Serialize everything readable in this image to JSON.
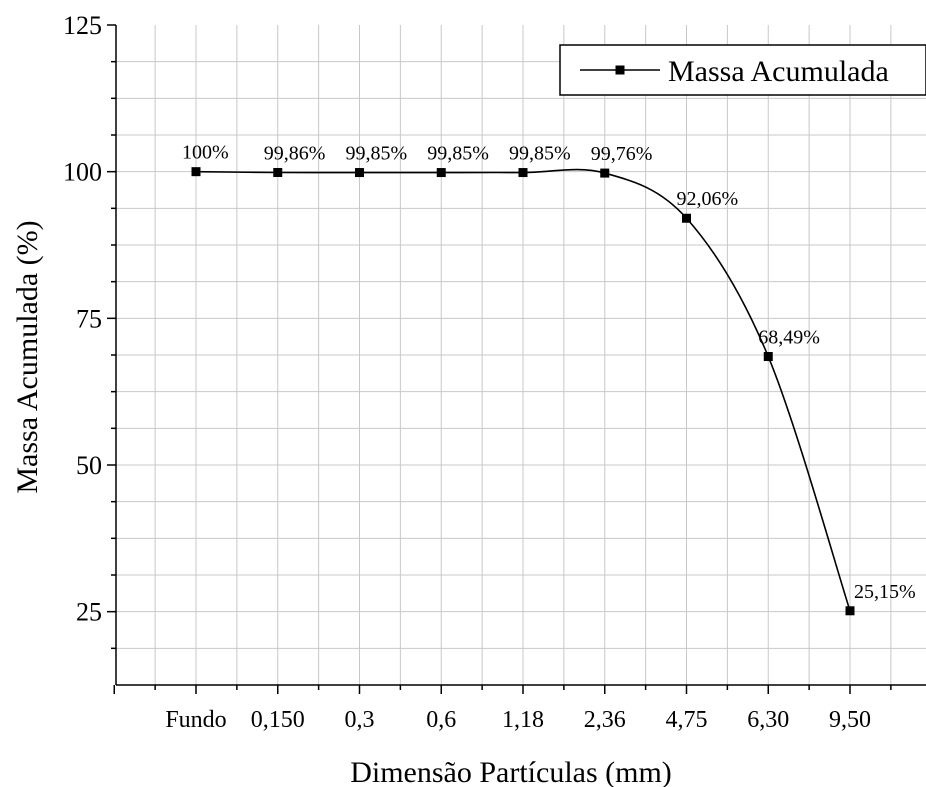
{
  "chart_data": {
    "type": "line",
    "xlabel": "Dimensão Partículas (mm)",
    "ylabel": "Massa Acumulada (%)",
    "categories": [
      "Fundo",
      "0,150",
      "0,3",
      "0,6",
      "1,18",
      "2,36",
      "4,75",
      "6,30",
      "9,50"
    ],
    "series": [
      {
        "name": "Massa Acumulada",
        "values": [
          100,
          99.86,
          99.85,
          99.85,
          99.85,
          99.76,
          92.06,
          68.49,
          25.15
        ],
        "labels": [
          "100%",
          "99,86%",
          "99,85%",
          "99,85%",
          "99,85%",
          "99,76%",
          "92,06%",
          "68,49%",
          "25,15%"
        ]
      }
    ],
    "yticks": [
      "25",
      "50",
      "75",
      "100",
      "125"
    ],
    "ylim": [
      12.5,
      125
    ],
    "grid": true,
    "legend": "top-right",
    "colors": {
      "line": "#000000",
      "grid": "#c8c8c8"
    }
  }
}
